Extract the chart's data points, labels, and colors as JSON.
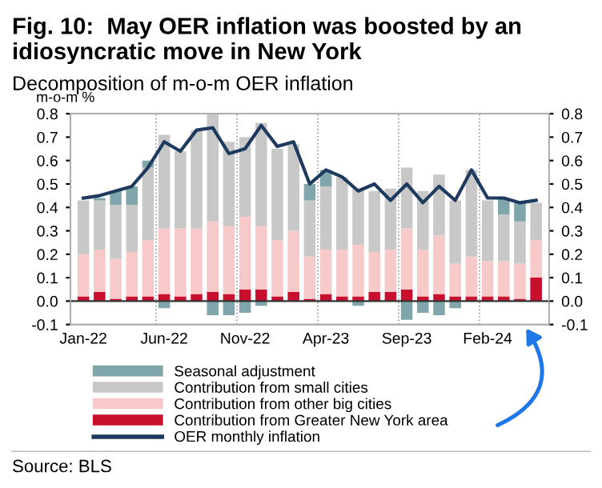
{
  "chart_data": {
    "type": "bar",
    "stacked": true,
    "title": "Fig. 10:  May OER inflation was boosted by an idiosyncratic move in New York",
    "subtitle": "Decomposition of m-o-m OER inflation",
    "ylabel": "m-o-m %",
    "annotations": [
      "Source: BLS"
    ],
    "categories": [
      "Jan-22",
      null,
      null,
      null,
      null,
      "Jun-22",
      null,
      null,
      null,
      null,
      "Nov-22",
      null,
      null,
      null,
      null,
      "Apr-23",
      null,
      null,
      null,
      null,
      "Sep-23",
      null,
      null,
      null,
      null,
      "Feb-24",
      null,
      null,
      null
    ],
    "series": [
      {
        "name": "Contribution from Greater New York area",
        "color": "#c8102e",
        "values": [
          0.02,
          0.04,
          0.01,
          0.02,
          0.02,
          0.03,
          0.02,
          0.03,
          0.04,
          0.03,
          0.05,
          0.05,
          0.02,
          0.04,
          0.01,
          0.03,
          0.02,
          0.02,
          0.04,
          0.04,
          0.05,
          0.02,
          0.03,
          0.02,
          0.02,
          0.02,
          0.02,
          0.01,
          0.1
        ]
      },
      {
        "name": "Contribution from other big cities",
        "color": "#f7c9c9",
        "values": [
          0.18,
          0.18,
          0.17,
          0.19,
          0.24,
          0.28,
          0.29,
          0.28,
          0.3,
          0.29,
          0.31,
          0.27,
          0.24,
          0.26,
          0.18,
          0.19,
          0.2,
          0.22,
          0.17,
          0.18,
          0.26,
          0.2,
          0.25,
          0.14,
          0.17,
          0.15,
          0.15,
          0.15,
          0.16
        ]
      },
      {
        "name": "Contribution from small cities",
        "color": "#c8c8c8",
        "values": [
          0.23,
          0.21,
          0.23,
          0.2,
          0.31,
          0.4,
          0.33,
          0.42,
          0.46,
          0.36,
          0.34,
          0.44,
          0.39,
          0.37,
          0.24,
          0.27,
          0.31,
          0.24,
          0.26,
          0.26,
          0.26,
          0.25,
          0.26,
          0.27,
          0.37,
          0.26,
          0.2,
          0.18,
          0.16
        ]
      },
      {
        "name": "Seasonal adjustment",
        "color": "#7fa7ab",
        "values": [
          null,
          0.01,
          0.06,
          0.08,
          0.03,
          -0.03,
          0,
          0,
          -0.06,
          -0.06,
          -0.05,
          -0.02,
          0,
          0,
          0.07,
          0.07,
          0,
          -0.02,
          0,
          0,
          -0.08,
          -0.05,
          -0.06,
          -0.03,
          0,
          null,
          0.07,
          0.08,
          null
        ]
      },
      {
        "name": "OER monthly inflation",
        "type": "line",
        "color": "#1f3a5f",
        "values": [
          0.44,
          0.45,
          0.47,
          0.49,
          0.57,
          0.68,
          0.64,
          0.73,
          0.74,
          0.63,
          0.65,
          0.75,
          0.66,
          0.68,
          0.5,
          0.56,
          0.53,
          0.47,
          0.5,
          0.43,
          0.5,
          0.42,
          0.49,
          0.43,
          0.56,
          0.44,
          0.44,
          0.42,
          0.43
        ]
      }
    ],
    "ylim": [
      -0.1,
      0.8
    ],
    "yticks": [
      -0.1,
      {
        "value": 0,
        "label": "0.0"
      },
      0.1,
      0.2,
      0.3,
      0.4,
      0.5,
      0.6,
      0.7,
      0.8
    ],
    "y2lim": [
      -0.1,
      0.8
    ],
    "y2ticks": [
      -0.1,
      {
        "value": 0,
        "label": "0.0"
      },
      0.1,
      0.2,
      0.3,
      0.4,
      0.5,
      0.6,
      0.7,
      0.8
    ],
    "grid": "x",
    "legend": "bottom"
  }
}
